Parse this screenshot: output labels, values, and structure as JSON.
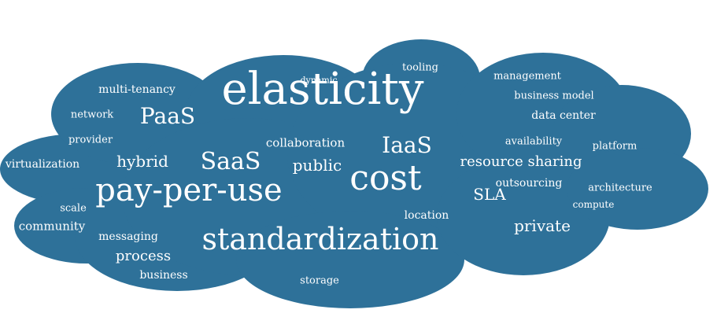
{
  "colors": {
    "cloud_fill": "#2e7199",
    "cloud_stroke": "#ffffff",
    "text": "#ffffff"
  },
  "words": {
    "elasticity": "elasticity",
    "cost": "cost",
    "pay_per_use": "pay-per-use",
    "standardization": "standardization",
    "iaas": "IaaS",
    "saas": "SaaS",
    "paas": "PaaS",
    "public": "public",
    "private": "private",
    "hybrid": "hybrid",
    "sla": "SLA",
    "resource_sharing": "resource sharing",
    "process": "process",
    "collaboration": "collaboration",
    "multi_tenancy": "multi-tenancy",
    "network": "network",
    "provider": "provider",
    "virtualization": "virtualization",
    "scale": "scale",
    "community": "community",
    "messaging": "messaging",
    "business": "business",
    "storage": "storage",
    "location": "location",
    "tooling": "tooling",
    "dynamic": "dynamic",
    "management": "management",
    "business_model": "business model",
    "data_center": "data center",
    "availability": "availability",
    "platform": "platform",
    "outsourcing": "outsourcing",
    "architecture": "architecture",
    "compute": "compute"
  }
}
